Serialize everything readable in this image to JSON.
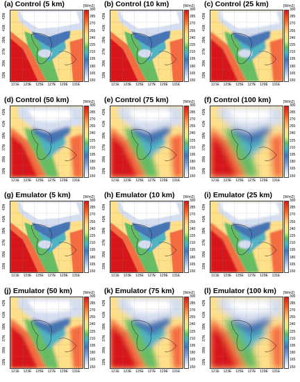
{
  "panels": [
    {
      "title": "(a) Control (5 km)",
      "style": "fine"
    },
    {
      "title": "(b) Control (10 km)",
      "style": "fine"
    },
    {
      "title": "(c) Control (25 km)",
      "style": "medium"
    },
    {
      "title": "(d) Control (50 km)",
      "style": "coarse"
    },
    {
      "title": "(e) Control (75 km)",
      "style": "coarser"
    },
    {
      "title": "(f) Control (100 km)",
      "style": "coarsest"
    },
    {
      "title": "(g) Emulator (5 km)",
      "style": "fine"
    },
    {
      "title": "(h) Emulator (10 km)",
      "style": "fine"
    },
    {
      "title": "(i) Emulator (25 km)",
      "style": "medium"
    },
    {
      "title": "(j) Emulator (50 km)",
      "style": "coarse"
    },
    {
      "title": "(k) Emulator (75 km)",
      "style": "coarser"
    },
    {
      "title": "(l) Emulator (100 km)",
      "style": "coarsest"
    }
  ],
  "colorbar": {
    "unit": "[W/m2]",
    "ticks": [
      "300",
      "285",
      "270",
      "255",
      "240",
      "225",
      "210",
      "195",
      "180",
      "165",
      "150"
    ]
  },
  "axes": {
    "x_ticks": [
      "121E",
      "123E",
      "125E",
      "127E",
      "129E",
      "131E"
    ],
    "y_ticks": [
      "43N",
      "41N",
      "39N",
      "37N",
      "35N",
      "33N"
    ]
  },
  "colors": {
    "high": "#d7191c",
    "orange": "#f46d43",
    "yellow": "#fee08b",
    "green": "#66bd63",
    "cyan": "#4fb3c4",
    "blue": "#4575b4",
    "light": "#d5def0",
    "white": "#ffffff"
  }
}
